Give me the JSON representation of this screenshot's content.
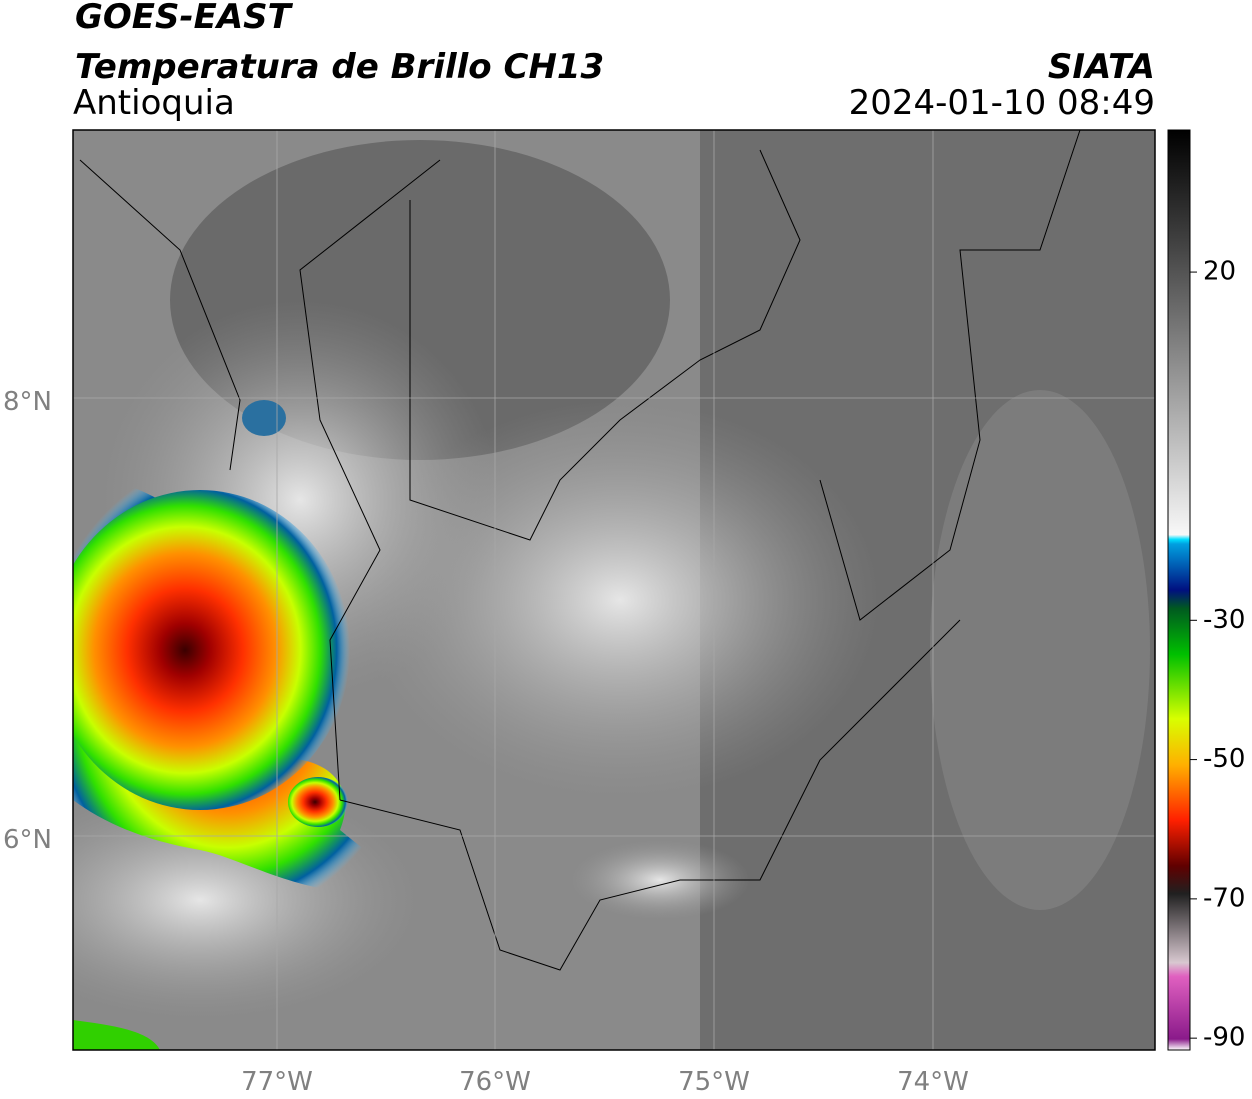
{
  "header": {
    "satellite": "GOES-EAST",
    "product": "Temperatura de Brillo CH13",
    "region": "Antioquia",
    "agency": "SIATA",
    "datetime": "2024-01-10 08:49"
  },
  "map": {
    "lat_labels": [
      "8°N",
      "6°N"
    ],
    "lon_labels": [
      "77°W",
      "76°W",
      "75°W",
      "74°W"
    ]
  },
  "colorbar": {
    "lim": [
      -91.7,
      40.4
    ],
    "ticks": [
      20,
      -30,
      -50,
      -70,
      -90
    ]
  }
}
